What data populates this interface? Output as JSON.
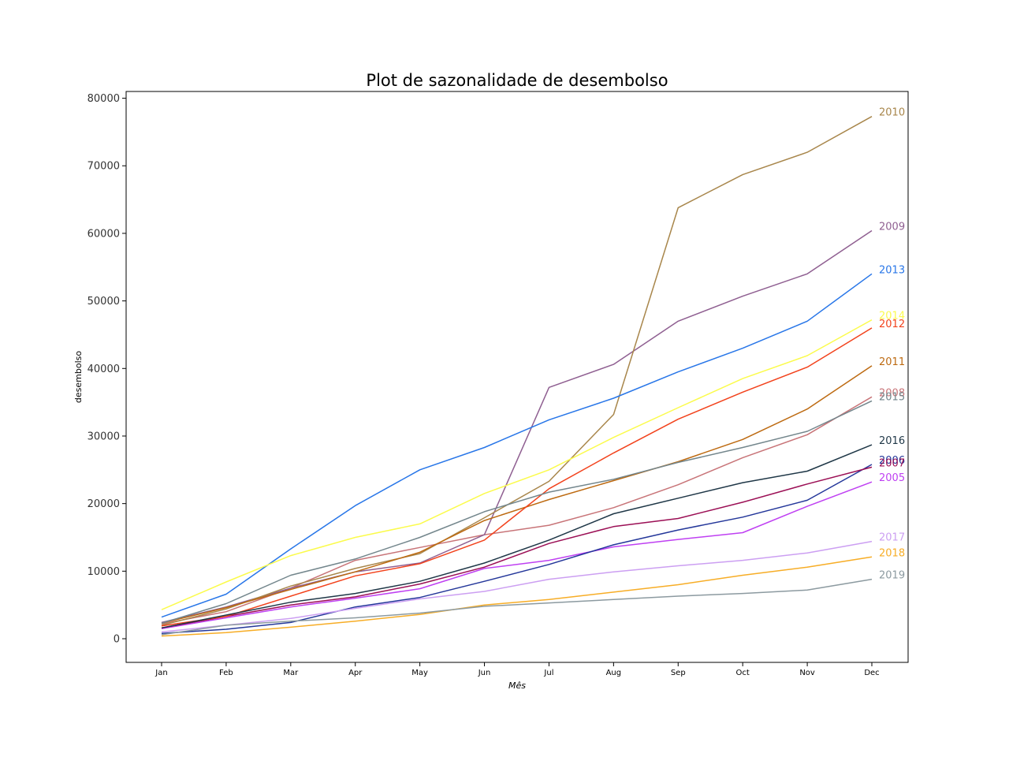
{
  "chart_data": {
    "type": "line",
    "title": "Plot de sazonalidade de desembolso",
    "xlabel": "Mês",
    "ylabel": "desembolso",
    "categories": [
      "Jan",
      "Feb",
      "Mar",
      "Apr",
      "May",
      "Jun",
      "Jul",
      "Aug",
      "Sep",
      "Oct",
      "Nov",
      "Dec"
    ],
    "ylim": [
      -3500,
      81000
    ],
    "yticks": [
      0,
      10000,
      20000,
      30000,
      40000,
      50000,
      60000,
      70000,
      80000
    ],
    "grid": false,
    "legend": "none (series labels at line ends)",
    "series": [
      {
        "name": "2005",
        "color": "#bf40f2",
        "values": [
          1500,
          3100,
          4700,
          6000,
          7400,
          10400,
          11600,
          13600,
          14700,
          15700,
          19600,
          23200
        ]
      },
      {
        "name": "2006",
        "color": "#24379a",
        "values": [
          800,
          1400,
          2400,
          4700,
          6100,
          8500,
          11000,
          13900,
          16100,
          18000,
          20500,
          25800
        ]
      },
      {
        "name": "2007",
        "color": "#9b0f55",
        "values": [
          1600,
          3300,
          5000,
          6200,
          8100,
          10600,
          14100,
          16600,
          17800,
          20200,
          22900,
          25400
        ]
      },
      {
        "name": "2008",
        "color": "#c87478",
        "values": [
          2200,
          4000,
          7500,
          11600,
          13500,
          15400,
          16800,
          19400,
          22800,
          26800,
          30200,
          35800
        ]
      },
      {
        "name": "2009",
        "color": "#8f5f91",
        "values": [
          2400,
          4700,
          7500,
          9900,
          11200,
          15400,
          37200,
          40600,
          47000,
          50700,
          54000,
          60400
        ]
      },
      {
        "name": "2010",
        "color": "#a8864b",
        "values": [
          2000,
          4400,
          7800,
          10400,
          12600,
          17900,
          23300,
          33200,
          63800,
          68700,
          72000,
          77300
        ]
      },
      {
        "name": "2011",
        "color": "#bd6a11",
        "values": [
          2300,
          4600,
          7300,
          9900,
          12800,
          17500,
          20600,
          23400,
          26200,
          29500,
          34000,
          40400
        ]
      },
      {
        "name": "2012",
        "color": "#f2421c",
        "values": [
          1900,
          3300,
          6300,
          9300,
          11100,
          14600,
          22200,
          27500,
          32500,
          36500,
          40200,
          46000
        ]
      },
      {
        "name": "2013",
        "color": "#2876e8",
        "values": [
          3200,
          6600,
          13300,
          19700,
          25000,
          28300,
          32400,
          35600,
          39500,
          43000,
          47000,
          54000
        ]
      },
      {
        "name": "2014",
        "color": "#fbfb4c",
        "values": [
          4300,
          8400,
          12300,
          15000,
          17000,
          21500,
          25000,
          29800,
          34200,
          38500,
          41900,
          47200
        ]
      },
      {
        "name": "2015",
        "color": "#73868c",
        "values": [
          2300,
          5200,
          9400,
          11800,
          15000,
          18800,
          21700,
          23600,
          26100,
          28300,
          30700,
          35200
        ]
      },
      {
        "name": "2016",
        "color": "#1f3747",
        "values": [
          1600,
          3500,
          5400,
          6700,
          8500,
          11200,
          14600,
          18500,
          20800,
          23100,
          24800,
          28700
        ]
      },
      {
        "name": "2017",
        "color": "#cc9ff2",
        "values": [
          1000,
          2000,
          3000,
          4500,
          5900,
          7000,
          8800,
          9900,
          10800,
          11600,
          12700,
          14400
        ]
      },
      {
        "name": "2018",
        "color": "#f7ad26",
        "values": [
          400,
          900,
          1700,
          2600,
          3600,
          5000,
          5800,
          6900,
          8000,
          9400,
          10600,
          12100
        ]
      },
      {
        "name": "2019",
        "color": "#8c9aa0",
        "values": [
          600,
          2000,
          2600,
          3100,
          3800,
          4800,
          5300,
          5800,
          6300,
          6700,
          7200,
          8800
        ]
      }
    ]
  }
}
